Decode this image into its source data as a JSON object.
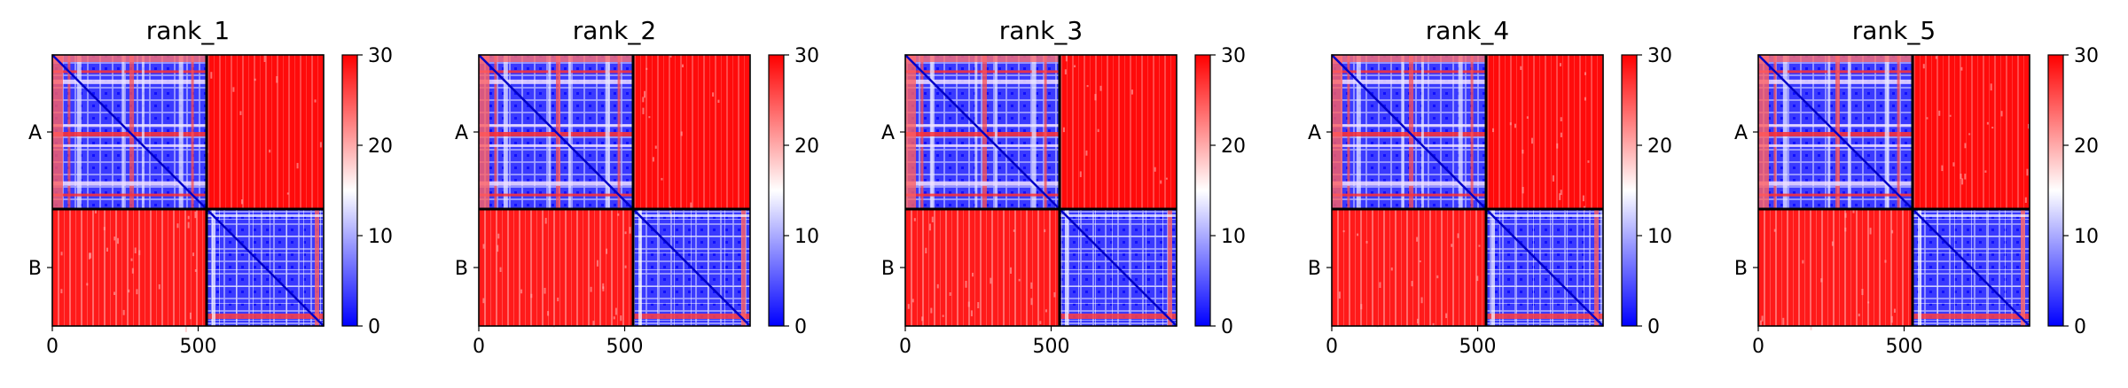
{
  "chart_data": [
    {
      "type": "heatmap",
      "title": "rank_1",
      "chains": [
        "A",
        "B"
      ],
      "x_ticks": [
        0,
        500
      ],
      "colorbar": {
        "min": 0,
        "max": 30,
        "ticks": [
          0,
          10,
          20,
          30
        ]
      },
      "colormap": [
        "#0000ff",
        "#ffffff",
        "#ff0000"
      ]
    },
    {
      "type": "heatmap",
      "title": "rank_2",
      "chains": [
        "A",
        "B"
      ],
      "x_ticks": [
        0,
        500
      ],
      "colorbar": {
        "min": 0,
        "max": 30,
        "ticks": [
          0,
          10,
          20,
          30
        ]
      },
      "colormap": [
        "#0000ff",
        "#ffffff",
        "#ff0000"
      ]
    },
    {
      "type": "heatmap",
      "title": "rank_3",
      "chains": [
        "A",
        "B"
      ],
      "x_ticks": [
        0,
        500
      ],
      "colorbar": {
        "min": 0,
        "max": 30,
        "ticks": [
          0,
          10,
          20,
          30
        ]
      },
      "colormap": [
        "#0000ff",
        "#ffffff",
        "#ff0000"
      ]
    },
    {
      "type": "heatmap",
      "title": "rank_4",
      "chains": [
        "A",
        "B"
      ],
      "x_ticks": [
        0,
        500
      ],
      "colorbar": {
        "min": 0,
        "max": 30,
        "ticks": [
          0,
          10,
          20,
          30
        ]
      },
      "colormap": [
        "#0000ff",
        "#ffffff",
        "#ff0000"
      ]
    },
    {
      "type": "heatmap",
      "title": "rank_5",
      "chains": [
        "A",
        "B"
      ],
      "x_ticks": [
        0,
        500
      ],
      "colorbar": {
        "min": 0,
        "max": 30,
        "ticks": [
          0,
          10,
          20,
          30
        ]
      },
      "colormap": [
        "#0000ff",
        "#ffffff",
        "#ff0000"
      ]
    }
  ]
}
